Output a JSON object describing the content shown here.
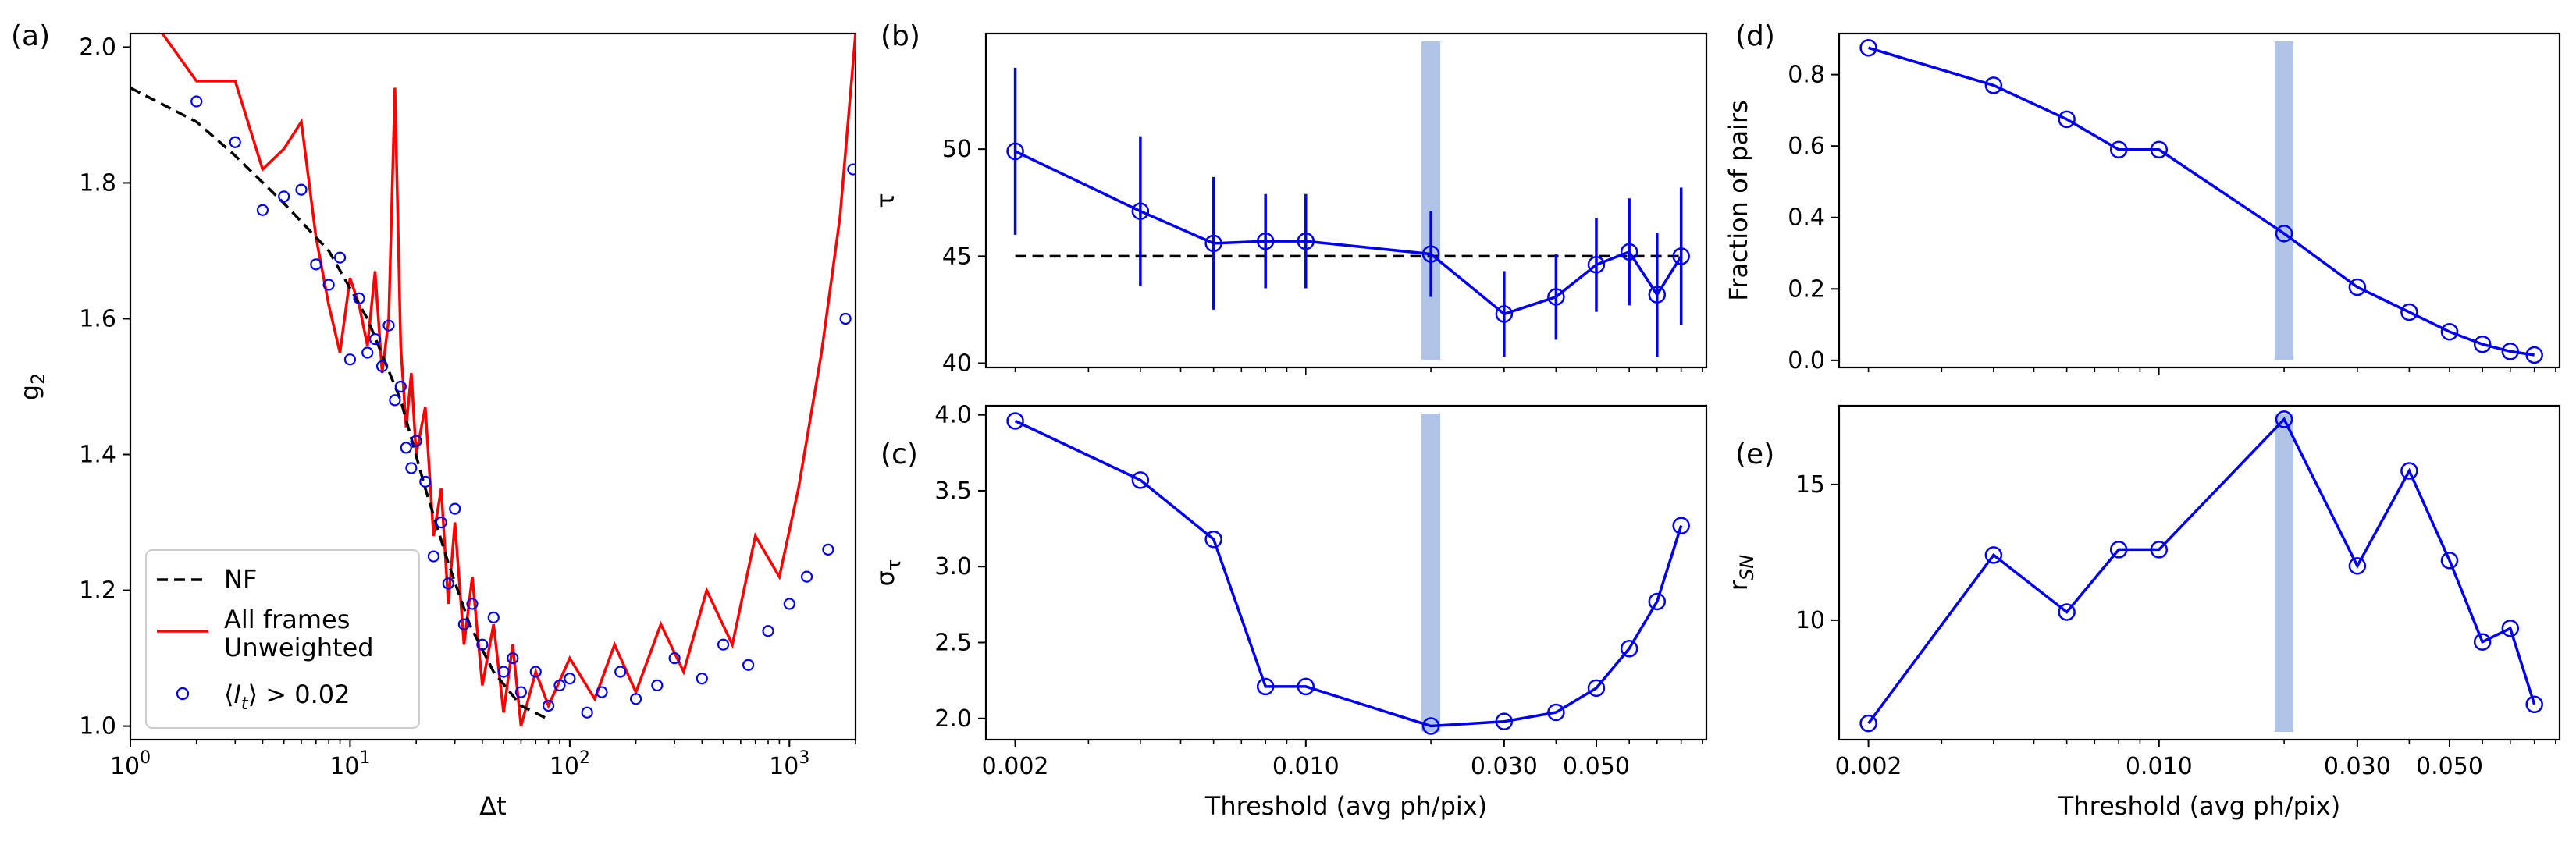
{
  "colors": {
    "series": "#0000ee",
    "raw": "#ff0000",
    "nf": "#000000",
    "band": "#b0c4e8"
  },
  "panels": [
    {
      "label": "(a)"
    },
    {
      "label": "(b)"
    },
    {
      "label": "(c)"
    },
    {
      "label": "(d)"
    },
    {
      "label": "(e)"
    }
  ],
  "chart_data": [
    {
      "id": "a",
      "type": "line",
      "title": "",
      "xlabel": "Δt",
      "ylabel": "g_2",
      "xscale": "log",
      "xlim": [
        1,
        2000
      ],
      "ylim": [
        0.98,
        2.02
      ],
      "xticks": [
        1,
        10,
        100,
        1000
      ],
      "xtick_labels": [
        "10^0",
        "10^1",
        "10^2",
        "10^3"
      ],
      "yticks": [
        1.0,
        1.2,
        1.4,
        1.6,
        1.8,
        2.0
      ],
      "ytick_labels": [
        "1.0",
        "1.2",
        "1.4",
        "1.6",
        "1.8",
        "2.0"
      ],
      "legend": {
        "position": "bottom-left",
        "entries": [
          {
            "label": "NF",
            "style": "dashed",
            "color": "#000000"
          },
          {
            "label": "All frames\nUnweighted",
            "style": "line",
            "color": "#ff0000"
          },
          {
            "label": "⟨I_t⟩ > 0.02",
            "style": "circle",
            "color": "#0000ee"
          }
        ]
      },
      "series": [
        {
          "name": "NF",
          "x": [
            1,
            2,
            3,
            5,
            8,
            12,
            17,
            22,
            28,
            35,
            45,
            60,
            80
          ],
          "y": [
            1.94,
            1.89,
            1.84,
            1.77,
            1.7,
            1.6,
            1.48,
            1.35,
            1.24,
            1.15,
            1.08,
            1.03,
            1.01
          ]
        },
        {
          "name": "All frames Unweighted",
          "x": [
            1.4,
            2,
            3,
            4,
            5,
            6,
            7,
            8,
            9,
            10,
            11,
            12,
            13,
            14,
            15,
            16,
            17,
            18,
            19,
            20,
            22,
            24,
            26,
            28,
            30,
            33,
            36,
            40,
            45,
            50,
            55,
            60,
            70,
            80,
            100,
            130,
            160,
            200,
            260,
            330,
            420,
            550,
            700,
            900,
            1100,
            1400,
            1700,
            2000
          ],
          "y": [
            2.02,
            1.95,
            1.95,
            1.82,
            1.85,
            1.89,
            1.72,
            1.62,
            1.55,
            1.66,
            1.62,
            1.56,
            1.67,
            1.52,
            1.6,
            1.94,
            1.56,
            1.44,
            1.52,
            1.4,
            1.47,
            1.28,
            1.35,
            1.18,
            1.3,
            1.12,
            1.22,
            1.06,
            1.15,
            1.02,
            1.12,
            1.0,
            1.08,
            1.03,
            1.1,
            1.04,
            1.12,
            1.05,
            1.15,
            1.08,
            1.2,
            1.12,
            1.28,
            1.22,
            1.35,
            1.55,
            1.75,
            2.02
          ]
        },
        {
          "name": "<I_t> > 0.02",
          "x": [
            2,
            3,
            4,
            5,
            6,
            7,
            8,
            9,
            10,
            11,
            12,
            13,
            14,
            15,
            16,
            17,
            18,
            19,
            20,
            22,
            24,
            26,
            28,
            30,
            33,
            36,
            40,
            45,
            50,
            55,
            60,
            70,
            80,
            90,
            100,
            120,
            140,
            170,
            200,
            250,
            300,
            400,
            500,
            650,
            800,
            1000,
            1200,
            1500,
            1800,
            1950
          ],
          "y": [
            1.92,
            1.86,
            1.76,
            1.78,
            1.79,
            1.68,
            1.65,
            1.69,
            1.54,
            1.63,
            1.55,
            1.57,
            1.53,
            1.59,
            1.48,
            1.5,
            1.41,
            1.38,
            1.42,
            1.36,
            1.25,
            1.3,
            1.21,
            1.32,
            1.15,
            1.18,
            1.12,
            1.16,
            1.08,
            1.1,
            1.05,
            1.08,
            1.03,
            1.06,
            1.07,
            1.02,
            1.05,
            1.08,
            1.04,
            1.06,
            1.1,
            1.07,
            1.12,
            1.09,
            1.14,
            1.18,
            1.22,
            1.26,
            1.6,
            1.82
          ]
        }
      ]
    },
    {
      "id": "b",
      "type": "line",
      "title": "",
      "xlabel": "",
      "ylabel": "τ",
      "xscale": "log",
      "xlim": [
        0.0017,
        0.092
      ],
      "ylim": [
        39.8,
        55.4
      ],
      "yticks": [
        40,
        45,
        50
      ],
      "ytick_labels": [
        "40",
        "45",
        "50"
      ],
      "x": [
        0.002,
        0.004,
        0.006,
        0.008,
        0.01,
        0.02,
        0.03,
        0.04,
        0.05,
        0.06,
        0.07,
        0.08
      ],
      "y": [
        49.9,
        47.1,
        45.6,
        45.7,
        45.7,
        45.1,
        42.3,
        43.1,
        44.6,
        45.2,
        43.2,
        45.0
      ],
      "yerr": [
        3.9,
        3.5,
        3.1,
        2.2,
        2.2,
        2.0,
        2.0,
        2.0,
        2.2,
        2.5,
        2.9,
        3.2
      ],
      "reference": {
        "name": "NF",
        "y": 45.0
      },
      "highlight_x": 0.02
    },
    {
      "id": "c",
      "type": "line",
      "title": "",
      "xlabel": "Threshold (avg ph/pix)",
      "ylabel": "σ_τ",
      "xscale": "log",
      "xlim": [
        0.0017,
        0.092
      ],
      "ylim": [
        1.86,
        4.06
      ],
      "xticks": [
        0.002,
        0.01,
        0.03,
        0.05
      ],
      "xtick_labels": [
        "0.002",
        "0.010",
        "0.030",
        "0.050"
      ],
      "yticks": [
        2.0,
        2.5,
        3.0,
        3.5,
        4.0
      ],
      "ytick_labels": [
        "2.0",
        "2.5",
        "3.0",
        "3.5",
        "4.0"
      ],
      "x": [
        0.002,
        0.004,
        0.006,
        0.008,
        0.01,
        0.02,
        0.03,
        0.04,
        0.05,
        0.06,
        0.07,
        0.08
      ],
      "y": [
        3.96,
        3.57,
        3.18,
        2.21,
        2.21,
        1.95,
        1.98,
        2.04,
        2.2,
        2.46,
        2.77,
        3.27
      ],
      "highlight_x": 0.02
    },
    {
      "id": "d",
      "type": "line",
      "title": "",
      "xlabel": "",
      "ylabel": "Fraction of pairs",
      "xscale": "log",
      "xlim": [
        0.0017,
        0.092
      ],
      "ylim": [
        -0.02,
        0.915
      ],
      "yticks": [
        0.0,
        0.2,
        0.4,
        0.6,
        0.8
      ],
      "ytick_labels": [
        "0.0",
        "0.2",
        "0.4",
        "0.6",
        "0.8"
      ],
      "x": [
        0.002,
        0.004,
        0.006,
        0.008,
        0.01,
        0.02,
        0.03,
        0.04,
        0.05,
        0.06,
        0.07,
        0.08
      ],
      "y": [
        0.875,
        0.77,
        0.675,
        0.59,
        0.59,
        0.355,
        0.205,
        0.135,
        0.08,
        0.045,
        0.025,
        0.015
      ],
      "highlight_x": 0.02
    },
    {
      "id": "e",
      "type": "line",
      "title": "",
      "xlabel": "Threshold (avg ph/pix)",
      "ylabel": "r_SN",
      "xscale": "log",
      "xlim": [
        0.0017,
        0.092
      ],
      "ylim": [
        5.6,
        17.9
      ],
      "xticks": [
        0.002,
        0.01,
        0.03,
        0.05
      ],
      "xtick_labels": [
        "0.002",
        "0.010",
        "0.030",
        "0.050"
      ],
      "yticks": [
        10,
        15
      ],
      "ytick_labels": [
        "10",
        "15"
      ],
      "x": [
        0.002,
        0.004,
        0.006,
        0.008,
        0.01,
        0.02,
        0.03,
        0.04,
        0.05,
        0.06,
        0.07,
        0.08
      ],
      "y": [
        6.2,
        12.4,
        10.3,
        12.6,
        12.6,
        17.4,
        12.0,
        15.5,
        12.2,
        9.2,
        9.7,
        6.9
      ],
      "highlight_x": 0.02
    }
  ]
}
